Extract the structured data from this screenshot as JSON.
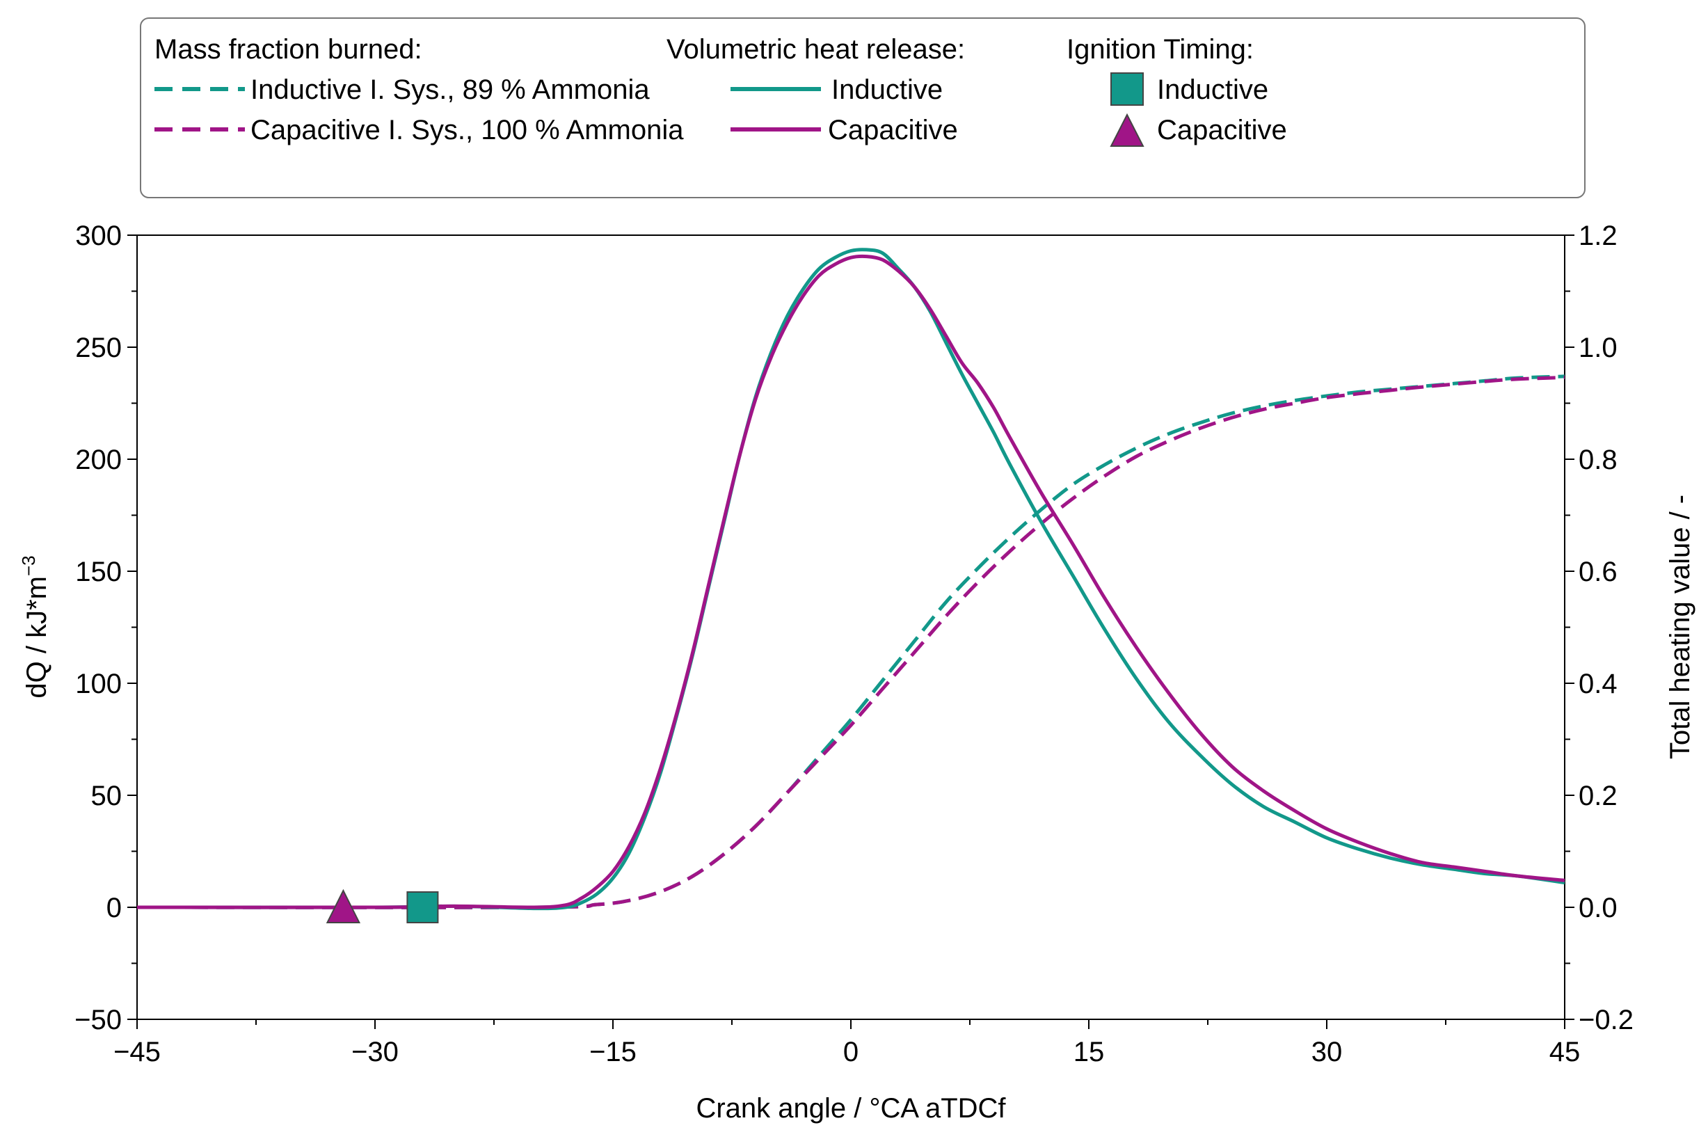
{
  "legend": {
    "mfb_heading": "Mass fraction burned:",
    "vhr_heading": "Volumetric heat release:",
    "ign_heading": "Ignition Timing:",
    "mfb_inductive": "Inductive I. Sys., 89 % Ammonia",
    "mfb_capacitive": "Capacitive I. Sys., 100 % Ammonia",
    "vhr_inductive": "Inductive",
    "vhr_capacitive": "Capacitive",
    "ign_inductive": "Inductive",
    "ign_capacitive": "Capacitive"
  },
  "colors": {
    "inductive": "#12988a",
    "capacitive": "#a01587"
  },
  "chart_data": {
    "type": "line",
    "xlabel": "Crank angle / °CA aTDCf",
    "ylabel": "dQ / kJ*m",
    "ylabel_sup": "−3",
    "y2label": "Total heating value / -",
    "xlim": [
      -45,
      45
    ],
    "ylim": [
      -50,
      300
    ],
    "y2lim": [
      -0.2,
      1.2
    ],
    "xticks": [
      "−45",
      "−30",
      "−15",
      "0",
      "15",
      "30",
      "45"
    ],
    "yticks": [
      "−50",
      "0",
      "50",
      "100",
      "150",
      "200",
      "250",
      "300"
    ],
    "y2ticks": [
      "−0.2",
      "0.0",
      "0.2",
      "0.4",
      "0.6",
      "0.8",
      "1.0",
      "1.2"
    ],
    "grid": false,
    "legend_position": "top",
    "series": [
      {
        "name": "Inductive",
        "group": "Volumetric heat release",
        "axis": "left",
        "style": "solid",
        "color": "#12988a",
        "points": [
          [
            -45,
            0
          ],
          [
            -30,
            0
          ],
          [
            -25,
            0.5
          ],
          [
            -20,
            -0.5
          ],
          [
            -18,
            0
          ],
          [
            -17,
            2
          ],
          [
            -16,
            6
          ],
          [
            -15,
            13
          ],
          [
            -14,
            24
          ],
          [
            -13,
            40
          ],
          [
            -12,
            60
          ],
          [
            -11,
            85
          ],
          [
            -10,
            112
          ],
          [
            -9,
            142
          ],
          [
            -8,
            172
          ],
          [
            -7,
            202
          ],
          [
            -6,
            228
          ],
          [
            -5,
            248
          ],
          [
            -4,
            264
          ],
          [
            -3,
            276
          ],
          [
            -2,
            285
          ],
          [
            -1,
            290
          ],
          [
            0,
            293
          ],
          [
            1,
            293.5
          ],
          [
            2,
            292
          ],
          [
            3,
            285
          ],
          [
            4,
            277
          ],
          [
            5,
            266
          ],
          [
            6,
            252
          ],
          [
            7,
            238
          ],
          [
            8,
            225
          ],
          [
            9,
            212
          ],
          [
            10,
            198
          ],
          [
            12,
            172
          ],
          [
            14,
            148
          ],
          [
            16,
            124
          ],
          [
            18,
            102
          ],
          [
            20,
            83
          ],
          [
            22,
            68
          ],
          [
            24,
            55
          ],
          [
            26,
            45
          ],
          [
            28,
            38
          ],
          [
            30,
            31
          ],
          [
            32,
            26
          ],
          [
            34,
            22
          ],
          [
            36,
            19
          ],
          [
            38,
            17
          ],
          [
            40,
            15
          ],
          [
            42,
            14
          ],
          [
            45,
            11
          ]
        ]
      },
      {
        "name": "Capacitive",
        "group": "Volumetric heat release",
        "axis": "left",
        "style": "solid",
        "color": "#a01587",
        "points": [
          [
            -45,
            0
          ],
          [
            -30,
            0
          ],
          [
            -25,
            0.5
          ],
          [
            -20,
            0
          ],
          [
            -18,
            1
          ],
          [
            -17,
            4
          ],
          [
            -16,
            9
          ],
          [
            -15,
            16
          ],
          [
            -14,
            27
          ],
          [
            -13,
            42
          ],
          [
            -12,
            62
          ],
          [
            -11,
            86
          ],
          [
            -10,
            113
          ],
          [
            -9,
            143
          ],
          [
            -8,
            173
          ],
          [
            -7,
            202
          ],
          [
            -6,
            227
          ],
          [
            -5,
            246
          ],
          [
            -4,
            261
          ],
          [
            -3,
            273
          ],
          [
            -2,
            282
          ],
          [
            -1,
            287
          ],
          [
            0,
            290
          ],
          [
            1,
            290.5
          ],
          [
            2,
            289
          ],
          [
            3,
            284
          ],
          [
            4,
            277
          ],
          [
            5,
            267
          ],
          [
            6,
            255
          ],
          [
            7,
            243
          ],
          [
            8,
            234
          ],
          [
            9,
            223
          ],
          [
            10,
            210
          ],
          [
            12,
            185
          ],
          [
            14,
            162
          ],
          [
            16,
            138
          ],
          [
            18,
            116
          ],
          [
            20,
            96
          ],
          [
            22,
            78
          ],
          [
            24,
            63
          ],
          [
            26,
            52
          ],
          [
            28,
            43
          ],
          [
            30,
            35
          ],
          [
            32,
            29
          ],
          [
            34,
            24
          ],
          [
            36,
            20
          ],
          [
            38,
            18
          ],
          [
            40,
            16
          ],
          [
            42,
            14
          ],
          [
            45,
            12
          ]
        ]
      },
      {
        "name": "Inductive I. Sys., 89 % Ammonia",
        "group": "Mass fraction burned",
        "axis": "right",
        "style": "dashed",
        "color": "#12988a",
        "points": [
          [
            -45,
            0
          ],
          [
            -20,
            0
          ],
          [
            -16,
            0.005
          ],
          [
            -14,
            0.012
          ],
          [
            -12,
            0.028
          ],
          [
            -10,
            0.055
          ],
          [
            -8,
            0.095
          ],
          [
            -6,
            0.145
          ],
          [
            -4,
            0.205
          ],
          [
            -2,
            0.27
          ],
          [
            0,
            0.335
          ],
          [
            2,
            0.405
          ],
          [
            4,
            0.475
          ],
          [
            6,
            0.545
          ],
          [
            8,
            0.605
          ],
          [
            10,
            0.66
          ],
          [
            12,
            0.71
          ],
          [
            14,
            0.755
          ],
          [
            16,
            0.79
          ],
          [
            18,
            0.82
          ],
          [
            20,
            0.845
          ],
          [
            22,
            0.865
          ],
          [
            24,
            0.882
          ],
          [
            26,
            0.895
          ],
          [
            28,
            0.905
          ],
          [
            30,
            0.913
          ],
          [
            32,
            0.92
          ],
          [
            34,
            0.925
          ],
          [
            36,
            0.93
          ],
          [
            38,
            0.935
          ],
          [
            40,
            0.94
          ],
          [
            42,
            0.945
          ],
          [
            45,
            0.948
          ]
        ]
      },
      {
        "name": "Capacitive I. Sys., 100 % Ammonia",
        "group": "Mass fraction burned",
        "axis": "right",
        "style": "dashed",
        "color": "#a01587",
        "points": [
          [
            -45,
            0
          ],
          [
            -20,
            0
          ],
          [
            -16,
            0.005
          ],
          [
            -14,
            0.012
          ],
          [
            -12,
            0.028
          ],
          [
            -10,
            0.055
          ],
          [
            -8,
            0.095
          ],
          [
            -6,
            0.145
          ],
          [
            -4,
            0.205
          ],
          [
            -2,
            0.265
          ],
          [
            0,
            0.325
          ],
          [
            2,
            0.39
          ],
          [
            4,
            0.455
          ],
          [
            6,
            0.52
          ],
          [
            8,
            0.58
          ],
          [
            10,
            0.635
          ],
          [
            12,
            0.685
          ],
          [
            14,
            0.73
          ],
          [
            16,
            0.77
          ],
          [
            18,
            0.805
          ],
          [
            20,
            0.832
          ],
          [
            22,
            0.855
          ],
          [
            24,
            0.874
          ],
          [
            26,
            0.889
          ],
          [
            28,
            0.9
          ],
          [
            30,
            0.91
          ],
          [
            32,
            0.917
          ],
          [
            34,
            0.923
          ],
          [
            36,
            0.929
          ],
          [
            38,
            0.934
          ],
          [
            40,
            0.939
          ],
          [
            42,
            0.943
          ],
          [
            45,
            0.946
          ]
        ]
      }
    ],
    "markers": [
      {
        "name": "Inductive",
        "group": "Ignition Timing",
        "shape": "square",
        "x": -27,
        "y": 0,
        "color": "#12988a"
      },
      {
        "name": "Capacitive",
        "group": "Ignition Timing",
        "shape": "triangle",
        "x": -32,
        "y": 0,
        "color": "#a01587"
      }
    ]
  }
}
